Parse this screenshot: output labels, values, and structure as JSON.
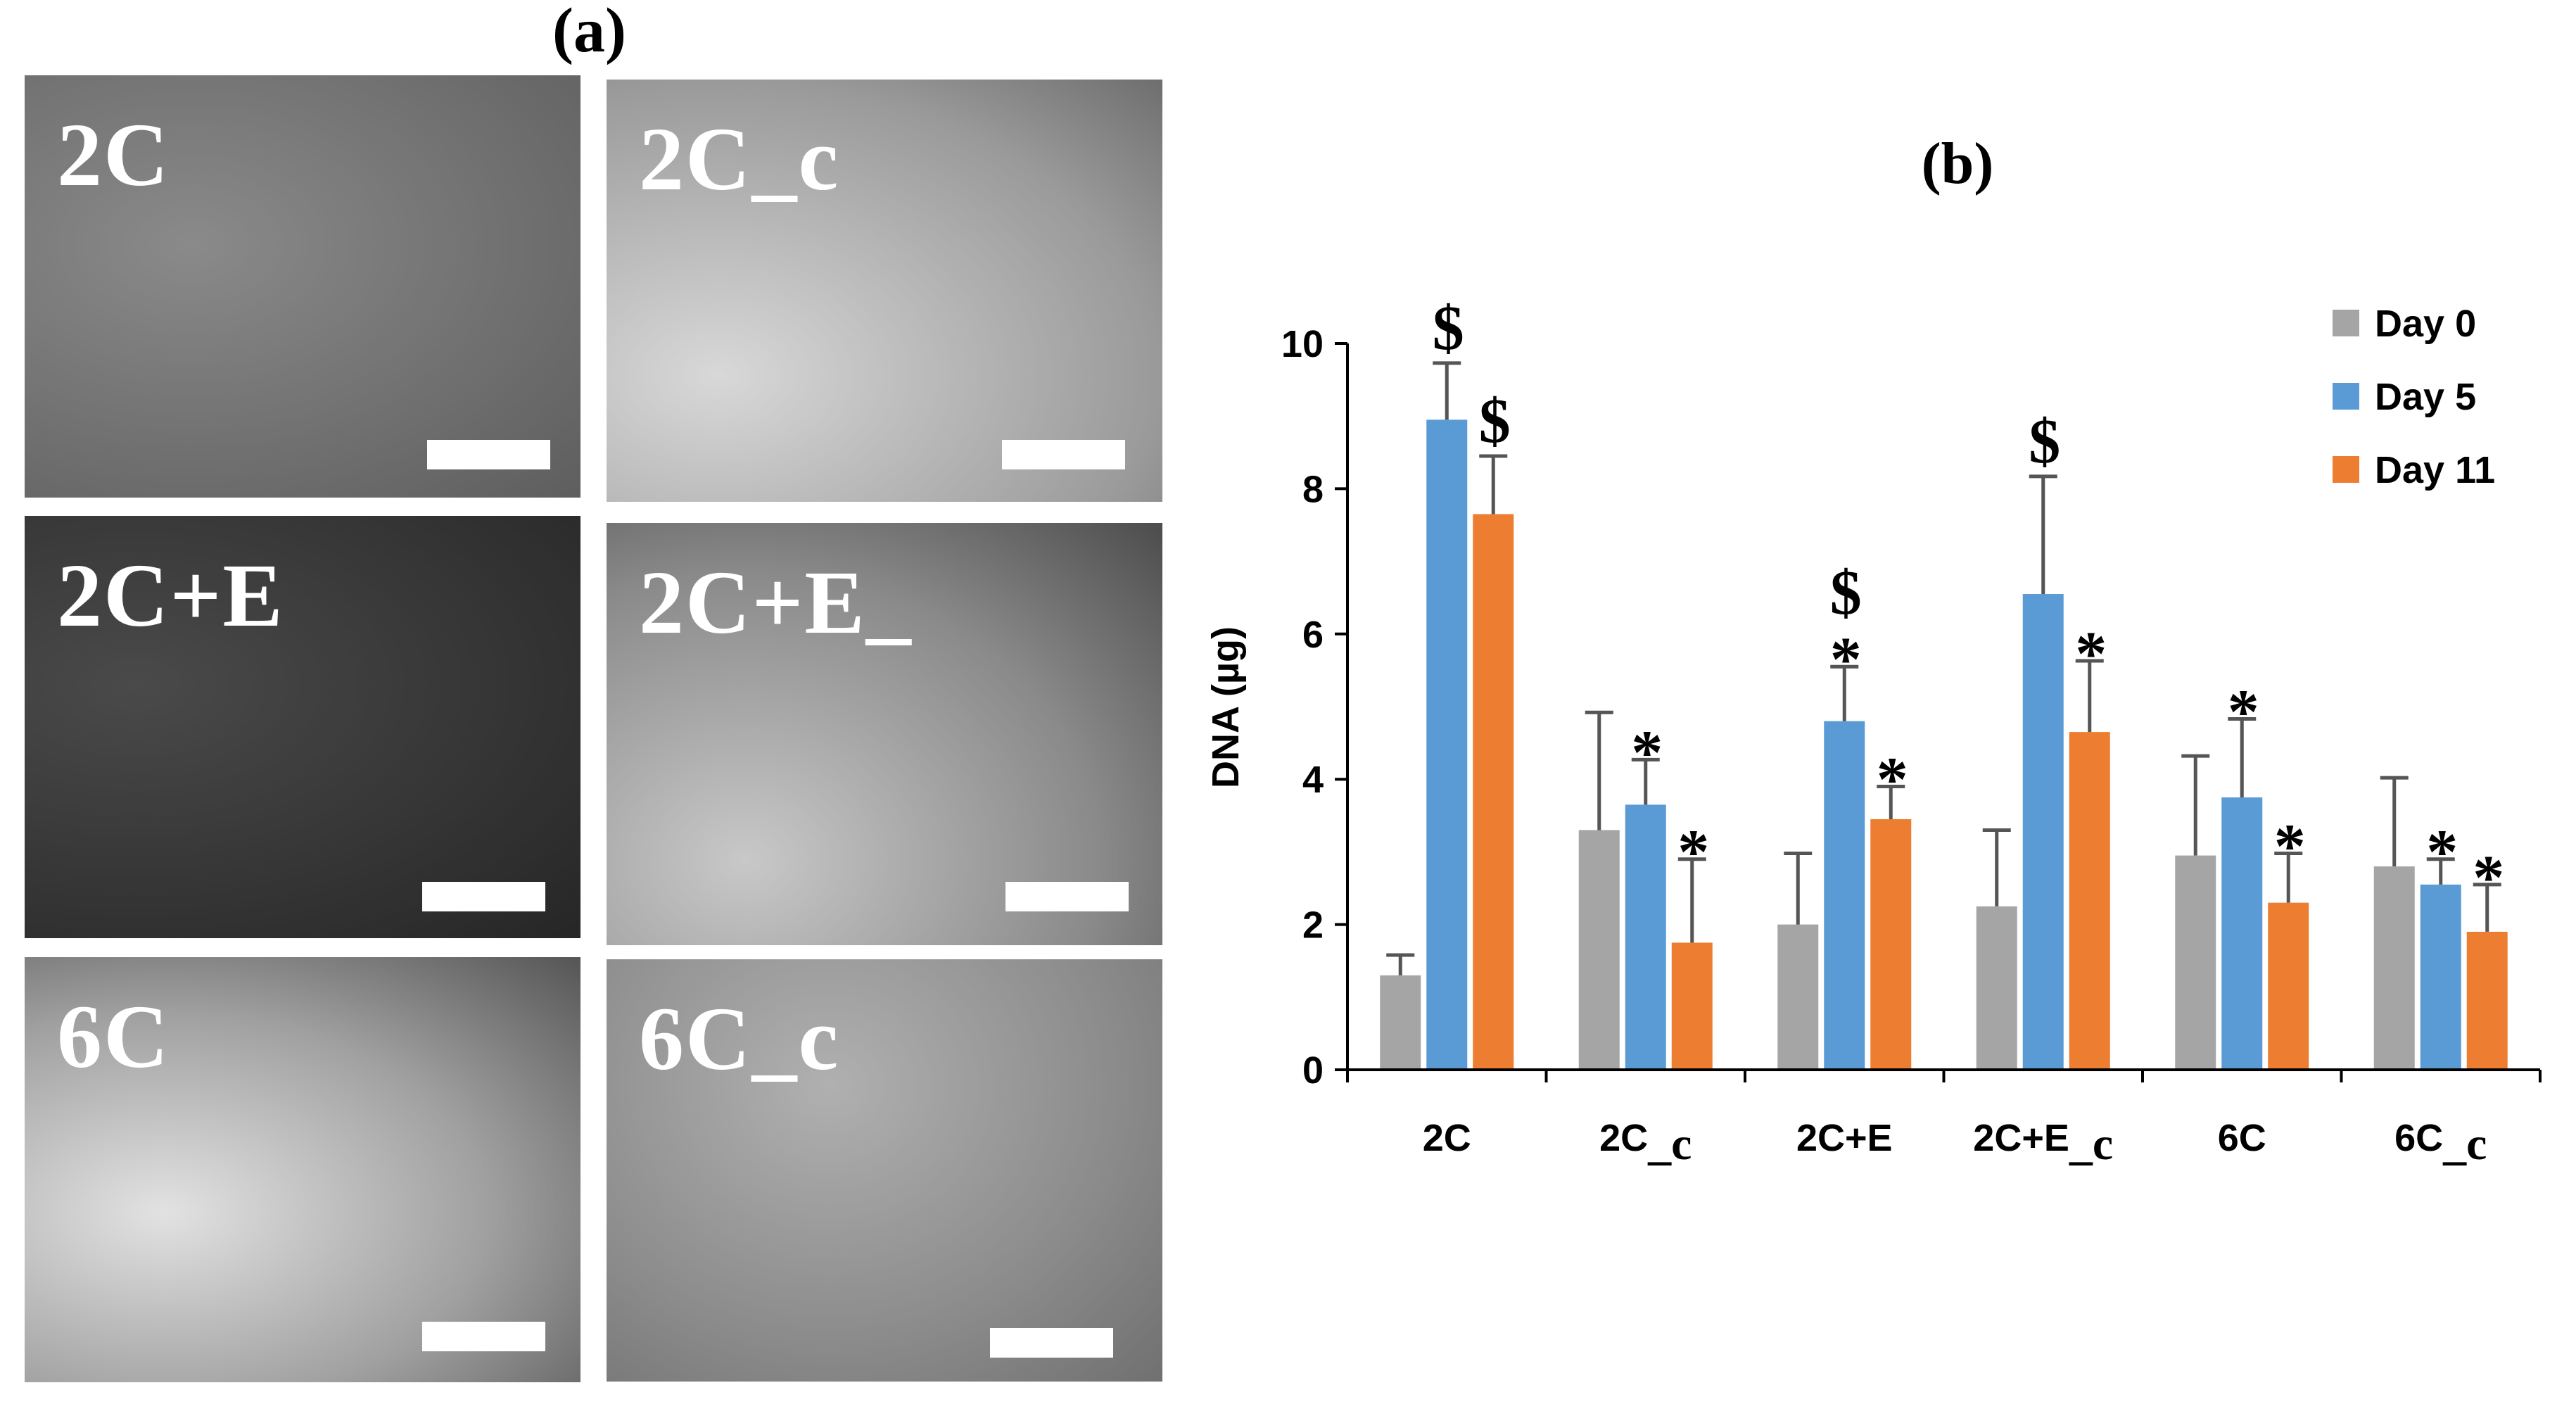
{
  "panel_a": {
    "label": "(a)",
    "images": [
      {
        "label": "2C",
        "bg": "#707070"
      },
      {
        "label": "2C_c",
        "bg": "#b4b4b4"
      },
      {
        "label": "2C+E",
        "bg": "#3c3c3c"
      },
      {
        "label": "2C+E_",
        "bg": "#8c8c8c"
      },
      {
        "label": "6C",
        "bg": "#a8a8a8"
      },
      {
        "label": "6C_c",
        "bg": "#989898"
      }
    ]
  },
  "chart_data": {
    "type": "bar",
    "title": "(b)",
    "ylabel": "DNA (µg)",
    "xlabel": "",
    "ylim": [
      0,
      10
    ],
    "yticks": [
      "0",
      "2",
      "4",
      "6",
      "8",
      "10"
    ],
    "categories": [
      {
        "main": "2C",
        "sub": ""
      },
      {
        "main": "2C",
        "sub": "_c"
      },
      {
        "main": "2C+E",
        "sub": ""
      },
      {
        "main": "2C+E",
        "sub": "_c"
      },
      {
        "main": "6C",
        "sub": ""
      },
      {
        "main": "6C",
        "sub": "_c"
      }
    ],
    "series": [
      {
        "name": "Day 0",
        "color": "#a5a5a5",
        "values": [
          1.3,
          3.3,
          2.0,
          2.25,
          2.95,
          2.8
        ],
        "errors": [
          0.28,
          1.62,
          0.98,
          1.05,
          1.37,
          1.22
        ],
        "annotations": [
          "",
          "",
          "",
          "",
          "",
          ""
        ]
      },
      {
        "name": "Day 5",
        "color": "#5b9bd5",
        "values": [
          8.95,
          3.65,
          4.8,
          6.55,
          3.75,
          2.55
        ],
        "errors": [
          0.78,
          0.62,
          0.75,
          1.62,
          1.08,
          0.35
        ],
        "annotations": [
          "$",
          "*",
          "$*",
          "$",
          "*",
          "*"
        ]
      },
      {
        "name": "Day 11",
        "color": "#ed7d31",
        "values": [
          7.65,
          1.75,
          3.45,
          4.65,
          2.3,
          1.9
        ],
        "errors": [
          0.8,
          1.15,
          0.45,
          0.98,
          0.68,
          0.65
        ],
        "annotations": [
          "$",
          "*",
          "*",
          "*",
          "*",
          "*"
        ]
      }
    ],
    "legend": "top-right"
  }
}
